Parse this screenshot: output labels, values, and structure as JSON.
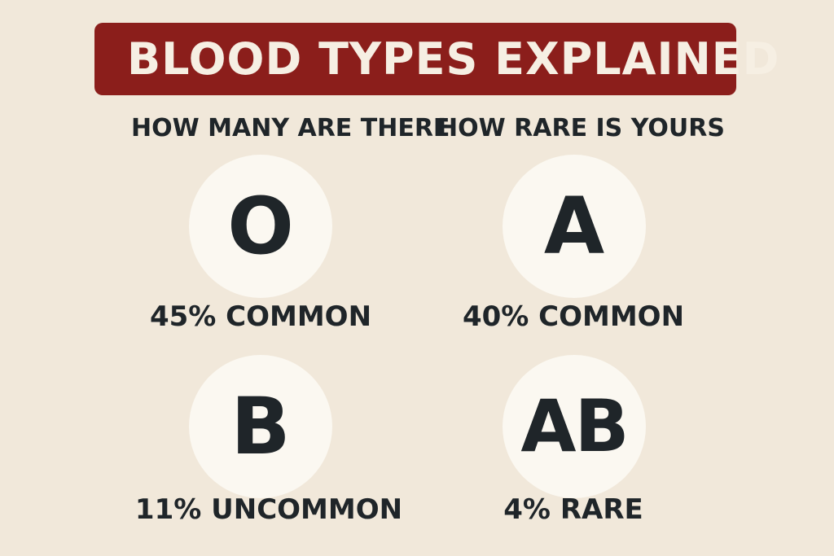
{
  "title": "BLOOD TYPES EXPLAINED",
  "subheadings": {
    "left": "HOW MANY ARE THERE",
    "right": "HOW RARE IS YOURS"
  },
  "types": [
    {
      "label": "O",
      "stat": "45% COMMON"
    },
    {
      "label": "A",
      "stat": "40% COMMON"
    },
    {
      "label": "B",
      "stat": "11% UNCOMMON"
    },
    {
      "label": "AB",
      "stat": "4% RARE"
    }
  ],
  "colors": {
    "background": "#f1e8da",
    "banner": "#8b1e1b",
    "banner_text": "#f6efe3",
    "circle": "#fbf8f1",
    "text": "#1f2529"
  }
}
